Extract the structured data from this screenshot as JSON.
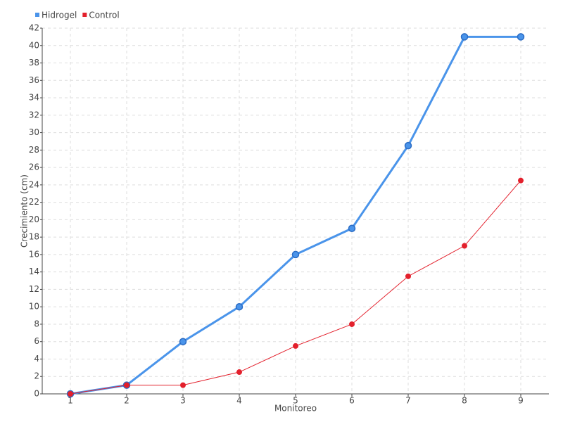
{
  "chart_data": {
    "type": "line",
    "x_label": "Monitoreo",
    "y_label": "Crecimiento (cm)",
    "categories": [
      "1",
      "2",
      "3",
      "4",
      "5",
      "6",
      "7",
      "8",
      "9"
    ],
    "series": [
      {
        "name": "Hidrogel",
        "color": "#4a94ea",
        "values": [
          0,
          1,
          6,
          10,
          16,
          19,
          28.5,
          41,
          41
        ]
      },
      {
        "name": "Control",
        "color": "#e3202c",
        "values": [
          0,
          1,
          1,
          2.5,
          5.5,
          8,
          13.5,
          17,
          24.5
        ]
      }
    ],
    "ylim": [
      0,
      42
    ],
    "yticks": [
      0,
      2,
      4,
      6,
      8,
      10,
      12,
      14,
      16,
      18,
      20,
      22,
      24,
      26,
      28,
      30,
      32,
      34,
      36,
      38,
      40,
      42
    ],
    "grid": true,
    "legend": "top-left"
  }
}
